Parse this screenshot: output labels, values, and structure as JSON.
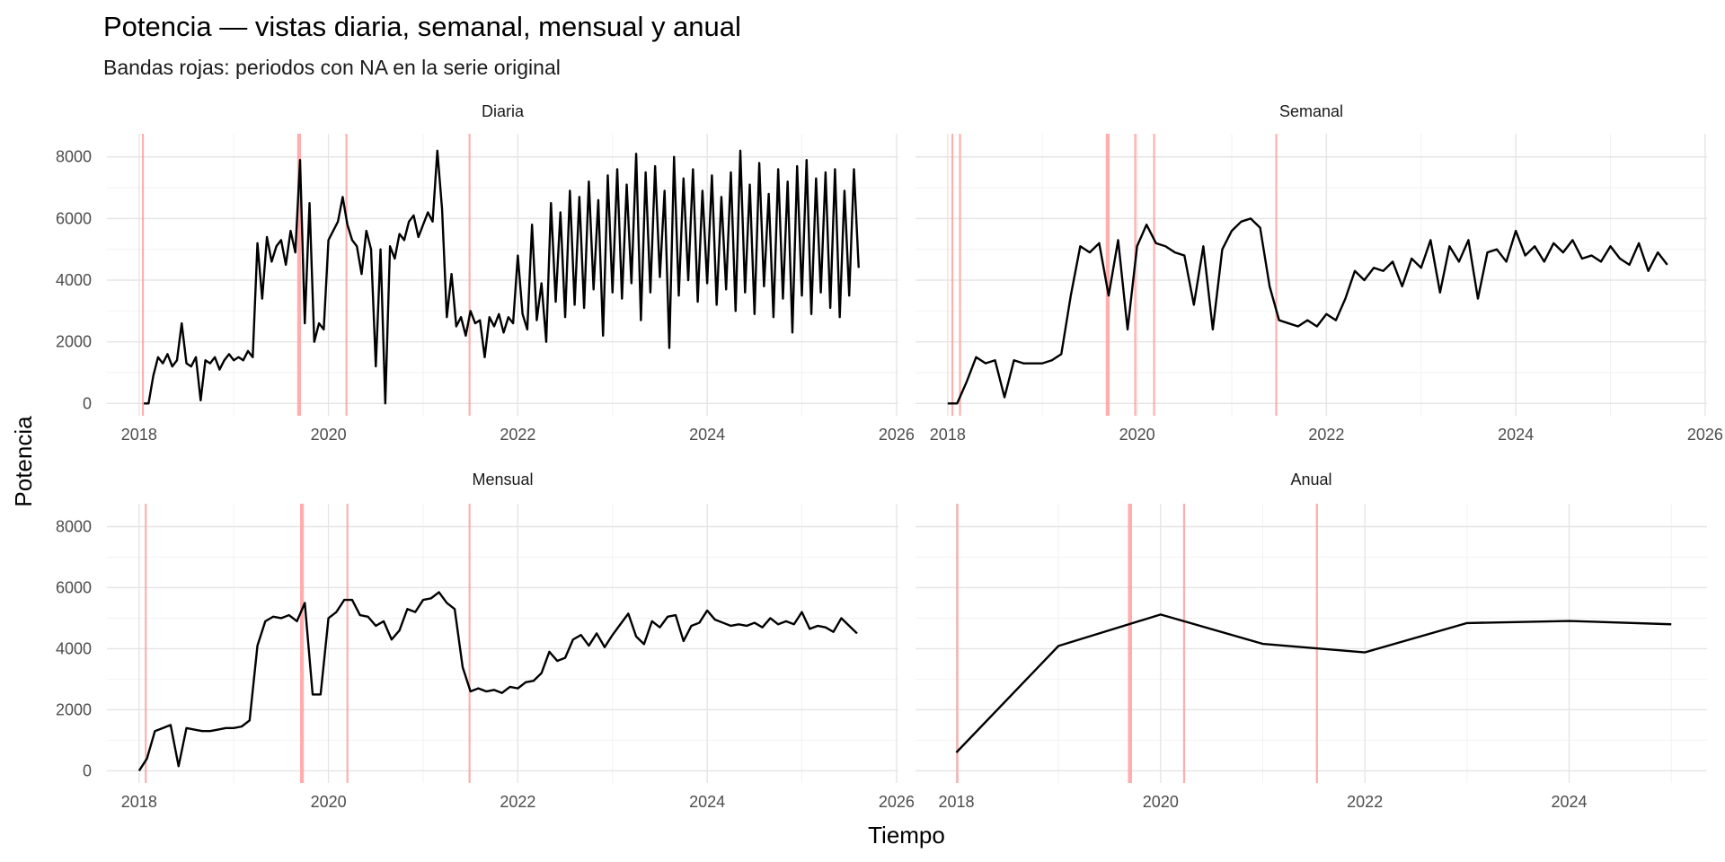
{
  "title": "Potencia — vistas diaria, semanal, mensual y anual",
  "subtitle": "Bandas rojas: periodos con NA en la serie original",
  "xlabel": "Tiempo",
  "ylabel": "Potencia",
  "chart_data": [
    {
      "type": "line",
      "title": "Diaria",
      "color": "#000000",
      "band_color": "#ff9999",
      "xlim": [
        2017.66,
        2026.02
      ],
      "xticks": [
        2018,
        2020,
        2022,
        2024,
        2026
      ],
      "xminorticks": [
        2019,
        2021,
        2023,
        2025
      ],
      "ylim": [
        -400,
        8750
      ],
      "yticks": [
        0,
        2000,
        4000,
        6000,
        8000
      ],
      "yminorticks": [
        1000,
        3000,
        5000,
        7000
      ],
      "na_bands": [
        [
          2018.03,
          2018.05
        ],
        [
          2019.67,
          2019.71
        ],
        [
          2020.18,
          2020.2
        ],
        [
          2021.48,
          2021.5
        ]
      ],
      "x": [
        2018.05,
        2018.1,
        2018.15,
        2018.2,
        2018.25,
        2018.3,
        2018.35,
        2018.4,
        2018.45,
        2018.5,
        2018.55,
        2018.6,
        2018.65,
        2018.7,
        2018.75,
        2018.8,
        2018.85,
        2018.9,
        2018.95,
        2019.0,
        2019.05,
        2019.1,
        2019.15,
        2019.2,
        2019.25,
        2019.3,
        2019.35,
        2019.4,
        2019.45,
        2019.5,
        2019.55,
        2019.6,
        2019.65,
        2019.7,
        2019.75,
        2019.8,
        2019.85,
        2019.9,
        2019.95,
        2020.0,
        2020.05,
        2020.1,
        2020.15,
        2020.2,
        2020.25,
        2020.3,
        2020.35,
        2020.4,
        2020.45,
        2020.5,
        2020.55,
        2020.6,
        2020.65,
        2020.7,
        2020.75,
        2020.8,
        2020.85,
        2020.9,
        2020.95,
        2021.0,
        2021.05,
        2021.1,
        2021.15,
        2021.2,
        2021.25,
        2021.3,
        2021.35,
        2021.4,
        2021.45,
        2021.5,
        2021.55,
        2021.6,
        2021.65,
        2021.7,
        2021.75,
        2021.8,
        2021.85,
        2021.9,
        2021.95,
        2022.0,
        2022.05,
        2022.1,
        2022.15,
        2022.2,
        2022.25,
        2022.3,
        2022.35,
        2022.4,
        2022.45,
        2022.5,
        2022.55,
        2022.6,
        2022.65,
        2022.7,
        2022.75,
        2022.8,
        2022.85,
        2022.9,
        2022.95,
        2023.0,
        2023.05,
        2023.1,
        2023.15,
        2023.2,
        2023.25,
        2023.3,
        2023.35,
        2023.4,
        2023.45,
        2023.5,
        2023.55,
        2023.6,
        2023.65,
        2023.7,
        2023.75,
        2023.8,
        2023.85,
        2023.9,
        2023.95,
        2024.0,
        2024.05,
        2024.1,
        2024.15,
        2024.2,
        2024.25,
        2024.3,
        2024.35,
        2024.4,
        2024.45,
        2024.5,
        2024.55,
        2024.6,
        2024.65,
        2024.7,
        2024.75,
        2024.8,
        2024.85,
        2024.9,
        2024.95,
        2025.0,
        2025.05,
        2025.1,
        2025.15,
        2025.2,
        2025.25,
        2025.3,
        2025.35,
        2025.4,
        2025.45,
        2025.5,
        2025.55,
        2025.6
      ],
      "values": [
        0,
        0,
        900,
        1500,
        1300,
        1600,
        1200,
        1400,
        2600,
        1300,
        1200,
        1500,
        100,
        1400,
        1300,
        1500,
        1100,
        1400,
        1600,
        1400,
        1500,
        1400,
        1700,
        1500,
        5200,
        3400,
        5400,
        4600,
        5100,
        5300,
        4500,
        5600,
        4900,
        7900,
        2600,
        6500,
        2000,
        2600,
        2400,
        5300,
        5600,
        5900,
        6700,
        5800,
        5300,
        5100,
        4200,
        5600,
        5000,
        1200,
        5000,
        0,
        5100,
        4700,
        5500,
        5300,
        5900,
        6100,
        5400,
        5800,
        6200,
        5900,
        8200,
        6300,
        2800,
        4200,
        2500,
        2800,
        2200,
        3000,
        2600,
        2700,
        1500,
        2800,
        2500,
        2900,
        2300,
        2800,
        2600,
        4800,
        2900,
        2400,
        5800,
        2700,
        3900,
        2000,
        6500,
        3300,
        6200,
        2800,
        6900,
        3200,
        6700,
        3100,
        7200,
        3700,
        6600,
        2200,
        7400,
        3600,
        7600,
        3400,
        7100,
        3900,
        8100,
        2700,
        7500,
        3600,
        7700,
        4100,
        6900,
        1800,
        8000,
        3500,
        7300,
        4000,
        7600,
        3300,
        6900,
        3900,
        7400,
        3200,
        6700,
        3700,
        7500,
        3000,
        8200,
        3600,
        7100,
        2900,
        7800,
        3800,
        6800,
        2800,
        7600,
        3400,
        7200,
        2300,
        7700,
        3500,
        7900,
        2900,
        7300,
        3600,
        7500,
        3100,
        7600,
        2800,
        6900,
        3500,
        7600,
        4400
      ]
    },
    {
      "type": "line",
      "title": "Semanal",
      "color": "#000000",
      "band_color": "#ff9999",
      "xlim": [
        2017.66,
        2026.02
      ],
      "xticks": [
        2018,
        2020,
        2022,
        2024,
        2026
      ],
      "xminorticks": [
        2019,
        2021,
        2023,
        2025
      ],
      "ylim": [
        -400,
        8750
      ],
      "yticks": [
        0,
        2000,
        4000,
        6000,
        8000
      ],
      "yminorticks": [
        1000,
        3000,
        5000,
        7000
      ],
      "na_bands": [
        [
          2018.04,
          2018.06
        ],
        [
          2018.12,
          2018.14
        ],
        [
          2019.67,
          2019.71
        ],
        [
          2019.97,
          2019.99
        ],
        [
          2020.17,
          2020.19
        ],
        [
          2021.46,
          2021.48
        ]
      ],
      "x": [
        2018.0,
        2018.1,
        2018.2,
        2018.3,
        2018.4,
        2018.5,
        2018.6,
        2018.7,
        2018.8,
        2018.9,
        2019.0,
        2019.1,
        2019.2,
        2019.3,
        2019.4,
        2019.5,
        2019.6,
        2019.7,
        2019.8,
        2019.9,
        2020.0,
        2020.1,
        2020.2,
        2020.3,
        2020.4,
        2020.5,
        2020.6,
        2020.7,
        2020.8,
        2020.9,
        2021.0,
        2021.1,
        2021.2,
        2021.3,
        2021.4,
        2021.5,
        2021.6,
        2021.7,
        2021.8,
        2021.9,
        2022.0,
        2022.1,
        2022.2,
        2022.3,
        2022.4,
        2022.5,
        2022.6,
        2022.7,
        2022.8,
        2022.9,
        2023.0,
        2023.1,
        2023.2,
        2023.3,
        2023.4,
        2023.5,
        2023.6,
        2023.7,
        2023.8,
        2023.9,
        2024.0,
        2024.1,
        2024.2,
        2024.3,
        2024.4,
        2024.5,
        2024.6,
        2024.7,
        2024.8,
        2024.9,
        2025.0,
        2025.1,
        2025.2,
        2025.3,
        2025.4,
        2025.5,
        2025.6
      ],
      "values": [
        0,
        0,
        700,
        1500,
        1300,
        1400,
        200,
        1400,
        1300,
        1300,
        1300,
        1400,
        1600,
        3500,
        5100,
        4900,
        5200,
        3500,
        5300,
        2400,
        5100,
        5800,
        5200,
        5100,
        4900,
        4800,
        3200,
        5100,
        2400,
        5000,
        5600,
        5900,
        6000,
        5700,
        3800,
        2700,
        2600,
        2500,
        2700,
        2500,
        2900,
        2700,
        3400,
        4300,
        4000,
        4400,
        4300,
        4600,
        3800,
        4700,
        4400,
        5300,
        3600,
        5100,
        4600,
        5300,
        3400,
        4900,
        5000,
        4600,
        5600,
        4800,
        5100,
        4600,
        5200,
        4900,
        5300,
        4700,
        4800,
        4600,
        5100,
        4700,
        4500,
        5200,
        4300,
        4900,
        4500
      ]
    },
    {
      "type": "line",
      "title": "Mensual",
      "color": "#000000",
      "band_color": "#ff9999",
      "xlim": [
        2017.66,
        2026.02
      ],
      "xticks": [
        2018,
        2020,
        2022,
        2024,
        2026
      ],
      "xminorticks": [
        2019,
        2021,
        2023,
        2025
      ],
      "ylim": [
        -400,
        8750
      ],
      "yticks": [
        0,
        2000,
        4000,
        6000,
        8000
      ],
      "yminorticks": [
        1000,
        3000,
        5000,
        7000
      ],
      "na_bands": [
        [
          2018.06,
          2018.08
        ],
        [
          2019.7,
          2019.74
        ],
        [
          2020.19,
          2020.21
        ],
        [
          2021.48,
          2021.5
        ]
      ],
      "x": [
        2018.0,
        2018.083,
        2018.167,
        2018.25,
        2018.333,
        2018.417,
        2018.5,
        2018.583,
        2018.667,
        2018.75,
        2018.833,
        2018.917,
        2019.0,
        2019.083,
        2019.167,
        2019.25,
        2019.333,
        2019.417,
        2019.5,
        2019.583,
        2019.667,
        2019.75,
        2019.833,
        2019.917,
        2020.0,
        2020.083,
        2020.167,
        2020.25,
        2020.333,
        2020.417,
        2020.5,
        2020.583,
        2020.667,
        2020.75,
        2020.833,
        2020.917,
        2021.0,
        2021.083,
        2021.167,
        2021.25,
        2021.333,
        2021.417,
        2021.5,
        2021.583,
        2021.667,
        2021.75,
        2021.833,
        2021.917,
        2022.0,
        2022.083,
        2022.167,
        2022.25,
        2022.333,
        2022.417,
        2022.5,
        2022.583,
        2022.667,
        2022.75,
        2022.833,
        2022.917,
        2023.0,
        2023.083,
        2023.167,
        2023.25,
        2023.333,
        2023.417,
        2023.5,
        2023.583,
        2023.667,
        2023.75,
        2023.833,
        2023.917,
        2024.0,
        2024.083,
        2024.167,
        2024.25,
        2024.333,
        2024.417,
        2024.5,
        2024.583,
        2024.667,
        2024.75,
        2024.833,
        2024.917,
        2025.0,
        2025.083,
        2025.167,
        2025.25,
        2025.333,
        2025.417,
        2025.5,
        2025.583
      ],
      "values": [
        0,
        400,
        1300,
        1400,
        1500,
        150,
        1400,
        1350,
        1300,
        1300,
        1350,
        1400,
        1400,
        1450,
        1650,
        4100,
        4900,
        5050,
        5000,
        5100,
        4900,
        5500,
        2500,
        2500,
        5000,
        5200,
        5600,
        5600,
        5100,
        5050,
        4750,
        4900,
        4300,
        4600,
        5300,
        5200,
        5600,
        5650,
        5850,
        5500,
        5300,
        3400,
        2600,
        2700,
        2600,
        2650,
        2550,
        2750,
        2700,
        2900,
        2950,
        3200,
        3900,
        3600,
        3700,
        4300,
        4450,
        4100,
        4500,
        4050,
        4450,
        4800,
        5150,
        4400,
        4150,
        4900,
        4700,
        5050,
        5100,
        4250,
        4750,
        4850,
        5250,
        4950,
        4850,
        4750,
        4800,
        4750,
        4850,
        4700,
        5000,
        4800,
        4900,
        4800,
        5200,
        4650,
        4750,
        4700,
        4550,
        5000,
        4750,
        4500
      ]
    },
    {
      "type": "line",
      "title": "Anual",
      "color": "#000000",
      "band_color": "#ff9999",
      "xlim": [
        2017.6,
        2025.35
      ],
      "xticks": [
        2018,
        2020,
        2022,
        2024
      ],
      "xminorticks": [
        2019,
        2021,
        2023,
        2025
      ],
      "ylim": [
        -400,
        8750
      ],
      "yticks": [
        0,
        2000,
        4000,
        6000,
        8000
      ],
      "yminorticks": [
        1000,
        3000,
        5000,
        7000
      ],
      "na_bands": [
        [
          2018.0,
          2018.02
        ],
        [
          2019.68,
          2019.72
        ],
        [
          2020.22,
          2020.24
        ],
        [
          2021.52,
          2021.54
        ]
      ],
      "x": [
        2018,
        2019,
        2020,
        2021,
        2022,
        2023,
        2024,
        2025
      ],
      "values": [
        600,
        4090,
        5120,
        4160,
        3880,
        4840,
        4910,
        4800
      ]
    }
  ]
}
